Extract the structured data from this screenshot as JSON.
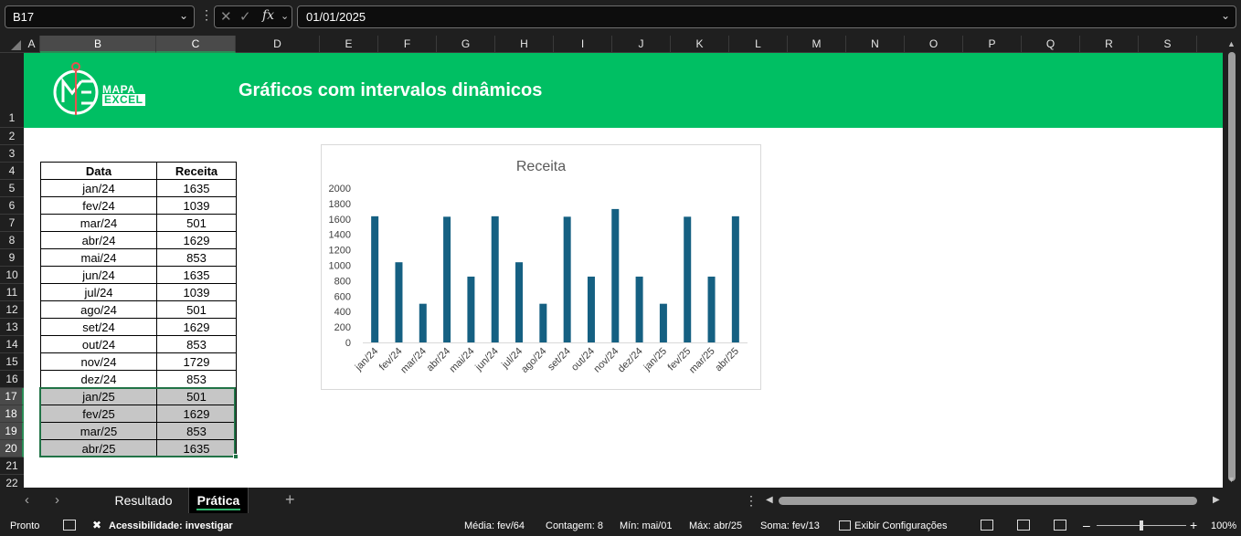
{
  "formula_bar": {
    "name_box": "B17",
    "fx": "fx",
    "value": "01/01/2025"
  },
  "columns": [
    "A",
    "B",
    "C",
    "D",
    "E",
    "F",
    "G",
    "H",
    "I",
    "J",
    "K",
    "L",
    "M",
    "N",
    "O",
    "P",
    "Q",
    "R",
    "S"
  ],
  "rows": [
    "1",
    "2",
    "3",
    "4",
    "5",
    "6",
    "7",
    "8",
    "9",
    "10",
    "11",
    "12",
    "13",
    "14",
    "15",
    "16",
    "17",
    "18",
    "19",
    "20",
    "21",
    "22"
  ],
  "banner": {
    "logo_line1": "MAPA",
    "logo_line2": "EXCEL",
    "title": "Gráficos com intervalos dinâmicos"
  },
  "table": {
    "headers": [
      "Data",
      "Receita"
    ],
    "rows": [
      [
        "jan/24",
        "1635"
      ],
      [
        "fev/24",
        "1039"
      ],
      [
        "mar/24",
        "501"
      ],
      [
        "abr/24",
        "1629"
      ],
      [
        "mai/24",
        "853"
      ],
      [
        "jun/24",
        "1635"
      ],
      [
        "jul/24",
        "1039"
      ],
      [
        "ago/24",
        "501"
      ],
      [
        "set/24",
        "1629"
      ],
      [
        "out/24",
        "853"
      ],
      [
        "nov/24",
        "1729"
      ],
      [
        "dez/24",
        "853"
      ],
      [
        "jan/25",
        "501"
      ],
      [
        "fev/25",
        "1629"
      ],
      [
        "mar/25",
        "853"
      ],
      [
        "abr/25",
        "1635"
      ]
    ]
  },
  "chart_data": {
    "type": "bar",
    "title": "Receita",
    "categories": [
      "jan/24",
      "fev/24",
      "mar/24",
      "abr/24",
      "mai/24",
      "jun/24",
      "jul/24",
      "ago/24",
      "set/24",
      "out/24",
      "nov/24",
      "dez/24",
      "jan/25",
      "fev/25",
      "mar/25",
      "abr/25"
    ],
    "values": [
      1635,
      1039,
      501,
      1629,
      853,
      1635,
      1039,
      501,
      1629,
      853,
      1729,
      853,
      501,
      1629,
      853,
      1635
    ],
    "yticks": [
      "0",
      "200",
      "400",
      "600",
      "800",
      "1000",
      "1200",
      "1400",
      "1600",
      "1800",
      "2000"
    ],
    "ylim": [
      0,
      2000
    ],
    "color": "#156082",
    "legend": "none",
    "grid": false
  },
  "tabs": {
    "sheets": [
      "Resultado",
      "Prática"
    ],
    "active": "Prática"
  },
  "status": {
    "mode": "Pronto",
    "accessibility": "Acessibilidade: investigar",
    "media": "Média: fev/64",
    "contagem": "Contagem: 8",
    "min": "Mín: mai/01",
    "max": "Máx: abr/25",
    "soma": "Soma: fev/13",
    "display_settings": "Exibir Configurações",
    "zoom": "100%"
  }
}
